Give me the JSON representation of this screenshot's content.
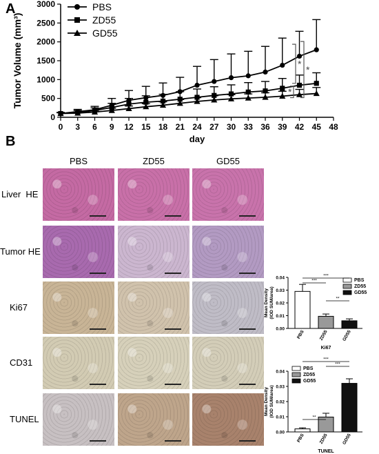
{
  "panel_labels": [
    "A",
    "B"
  ],
  "chart_data": [
    {
      "type": "line",
      "xlabel": "day",
      "ylabel": "Tumor Volume (mm³)",
      "xlim": [
        0,
        48
      ],
      "ylim": [
        0,
        3000
      ],
      "x_ticks": [
        0,
        3,
        6,
        9,
        12,
        15,
        18,
        21,
        24,
        27,
        30,
        33,
        36,
        39,
        42,
        45,
        48
      ],
      "y_ticks": [
        0,
        500,
        1000,
        1500,
        2000,
        2500,
        3000
      ],
      "legend_position": "top-left",
      "x": [
        0,
        3,
        6,
        9,
        12,
        15,
        18,
        21,
        24,
        27,
        30,
        33,
        36,
        39,
        42,
        45
      ],
      "series": [
        {
          "name": "PBS",
          "marker": "circle",
          "values": [
            100,
            150,
            200,
            320,
            450,
            520,
            580,
            680,
            850,
            950,
            1050,
            1100,
            1200,
            1380,
            1620,
            1790
          ],
          "error": [
            30,
            60,
            90,
            180,
            260,
            300,
            330,
            380,
            500,
            580,
            630,
            650,
            680,
            720,
            660,
            800
          ]
        },
        {
          "name": "ZD55",
          "marker": "square",
          "values": [
            100,
            130,
            180,
            260,
            350,
            400,
            430,
            480,
            530,
            580,
            620,
            670,
            700,
            770,
            850,
            900
          ],
          "error": [
            25,
            50,
            70,
            110,
            150,
            170,
            180,
            200,
            220,
            230,
            240,
            250,
            250,
            260,
            270,
            280
          ]
        },
        {
          "name": "GD55",
          "marker": "triangle",
          "values": [
            100,
            110,
            140,
            180,
            230,
            280,
            320,
            370,
            420,
            460,
            490,
            510,
            530,
            560,
            600,
            630
          ],
          "error": [
            20,
            30,
            40,
            60,
            70,
            80,
            90,
            100,
            100,
            110,
            110,
            110,
            120,
            130,
            140,
            160
          ]
        }
      ],
      "significance": [
        {
          "between": [
            "PBS",
            "ZD55"
          ],
          "label": "*"
        },
        {
          "between": [
            "PBS",
            "GD55"
          ],
          "label": "*"
        },
        {
          "between": [
            "ZD55",
            "GD55"
          ],
          "label": "*"
        }
      ]
    },
    {
      "type": "bar",
      "title": "",
      "xlabel": "Ki67",
      "ylabel": "Mean Density\n(IOD SUM/area)",
      "categories": [
        "PBS",
        "ZD55",
        "GD55"
      ],
      "values": [
        0.029,
        0.0095,
        0.006
      ],
      "error": [
        0.0055,
        0.0018,
        0.0015
      ],
      "ylim": [
        0,
        0.04
      ],
      "y_ticks": [
        0.0,
        0.01,
        0.02,
        0.03,
        0.04
      ],
      "y_tick_labels": [
        "0.00",
        "0.01",
        "0.02",
        "0.03",
        "0.04"
      ],
      "fills": [
        "#ffffff",
        "#999999",
        "#111111"
      ],
      "legend_position": "top-right",
      "significance": [
        {
          "between": [
            "PBS",
            "ZD55"
          ],
          "label": "***"
        },
        {
          "between": [
            "PBS",
            "GD55"
          ],
          "label": "***"
        },
        {
          "between": [
            "ZD55",
            "GD55"
          ],
          "label": "**"
        }
      ]
    },
    {
      "type": "bar",
      "title": "",
      "xlabel": "TUNEL",
      "ylabel": "Mean Density\n(IOD SUM/area)",
      "categories": [
        "PBS",
        "ZD55",
        "GD55"
      ],
      "values": [
        0.002,
        0.0098,
        0.032
      ],
      "error": [
        0.0007,
        0.0025,
        0.003
      ],
      "ylim": [
        0,
        0.04
      ],
      "y_ticks": [
        0.0,
        0.01,
        0.02,
        0.03,
        0.04
      ],
      "y_tick_labels": [
        "0.00",
        "0.01",
        "0.02",
        "0.03",
        "0.04"
      ],
      "fills": [
        "#ffffff",
        "#999999",
        "#111111"
      ],
      "legend_position": "top-left",
      "significance": [
        {
          "between": [
            "PBS",
            "ZD55"
          ],
          "label": "**"
        },
        {
          "between": [
            "PBS",
            "GD55"
          ],
          "label": "***"
        },
        {
          "between": [
            "ZD55",
            "GD55"
          ],
          "label": "***"
        }
      ]
    }
  ],
  "micrographs": {
    "columns": [
      "PBS",
      "ZD55",
      "GD55"
    ],
    "rows": [
      "Liver  HE",
      "Tumor HE",
      "Ki67",
      "CD31",
      "TUNEL"
    ],
    "tints": [
      [
        "#c46aa3",
        "#c870a8",
        "#c873ab"
      ],
      [
        "#a86aae",
        "#cbb6cf",
        "#b29ac2"
      ],
      [
        "#c8b496",
        "#d0c2ac",
        "#bfbcc6"
      ],
      [
        "#d2cbb3",
        "#d6d0ba",
        "#d3cdb8"
      ],
      [
        "#c7c0c2",
        "#bea58b",
        "#a8826c"
      ]
    ]
  }
}
